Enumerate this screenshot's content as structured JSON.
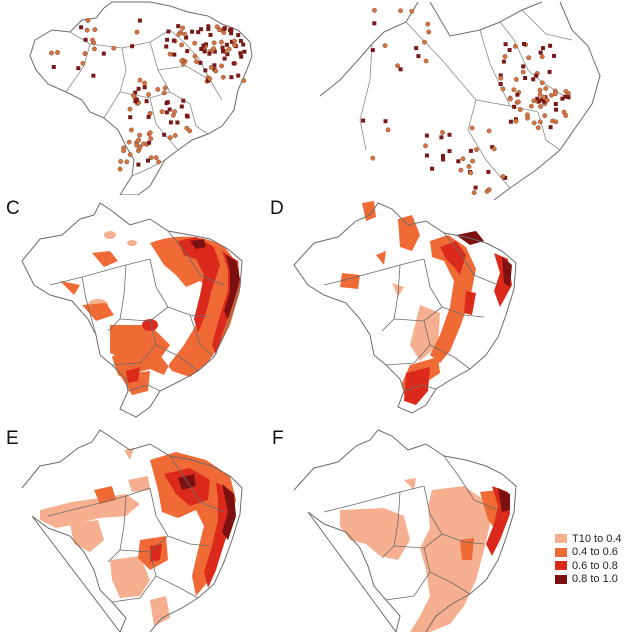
{
  "figure": {
    "panels": [
      {
        "id": "A",
        "label": "",
        "content": "occurrence points"
      },
      {
        "id": "B",
        "label": "",
        "content": "occurrence points (zoom)"
      },
      {
        "id": "C",
        "label": "C",
        "content": "suitability map"
      },
      {
        "id": "D",
        "label": "D",
        "content": "suitability map"
      },
      {
        "id": "E",
        "label": "E",
        "content": "suitability map"
      },
      {
        "id": "F",
        "label": "F",
        "content": "suitability map"
      }
    ]
  },
  "legend": {
    "items": [
      {
        "label": "T10 to 0.4",
        "color": "#f7b08f"
      },
      {
        "label": "0.4 to 0.6",
        "color": "#ef6a35"
      },
      {
        "label": "0.6 to 0.8",
        "color": "#db2a1c"
      },
      {
        "label": "0.8 to 1.0",
        "color": "#7d1010"
      }
    ]
  },
  "colors": {
    "border": "#6b6b6b",
    "point_light": "#d9743e",
    "point_dark": "#7a1818"
  }
}
